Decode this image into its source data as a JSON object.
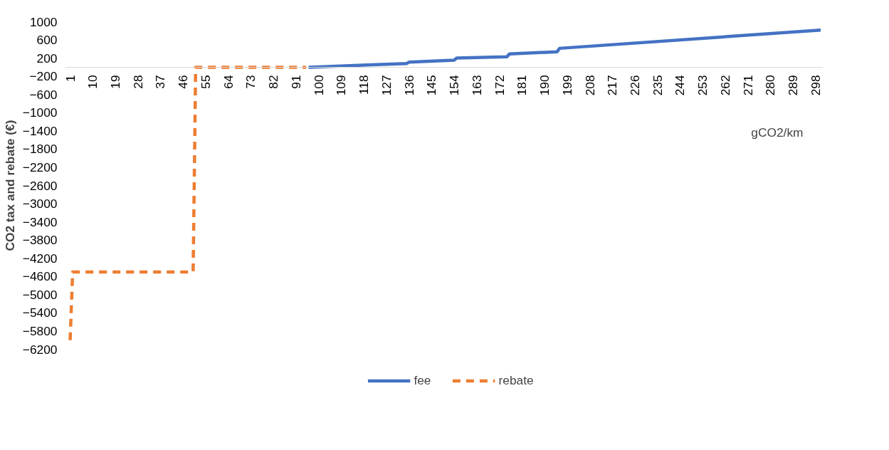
{
  "chart_data": {
    "type": "line",
    "xlabel": "gCO2/km",
    "ylabel": "CO2 tax and rebate (€)",
    "xlim": [
      -1,
      301
    ],
    "xticks": [
      1,
      10,
      19,
      28,
      37,
      46,
      55,
      64,
      73,
      82,
      91,
      100,
      109,
      118,
      127,
      136,
      145,
      154,
      163,
      172,
      181,
      190,
      199,
      208,
      217,
      226,
      235,
      244,
      253,
      262,
      271,
      280,
      289,
      298
    ],
    "ylim": [
      -6200,
      1000
    ],
    "yticks": [
      1000,
      600,
      200,
      -200,
      -600,
      -1000,
      -1400,
      -1800,
      -2200,
      -2600,
      -3000,
      -3400,
      -3800,
      -4200,
      -4600,
      -5000,
      -5400,
      -5800,
      -6200
    ],
    "legend": "bottom",
    "series": [
      {
        "name": "fee",
        "color": "#4472c4",
        "line_style": "solid",
        "x": [
          96,
          135,
          136,
          154,
          155,
          175,
          176,
          195,
          196,
          300
        ],
        "values": [
          0,
          80,
          110,
          155,
          200,
          230,
          290,
          340,
          415,
          815
        ]
      },
      {
        "name": "rebate",
        "color": "#ed7d31",
        "line_style": "dashed",
        "x": [
          1,
          2,
          50,
          51,
          95
        ],
        "values": [
          -6000,
          -4500,
          -4500,
          0,
          0
        ]
      }
    ]
  }
}
